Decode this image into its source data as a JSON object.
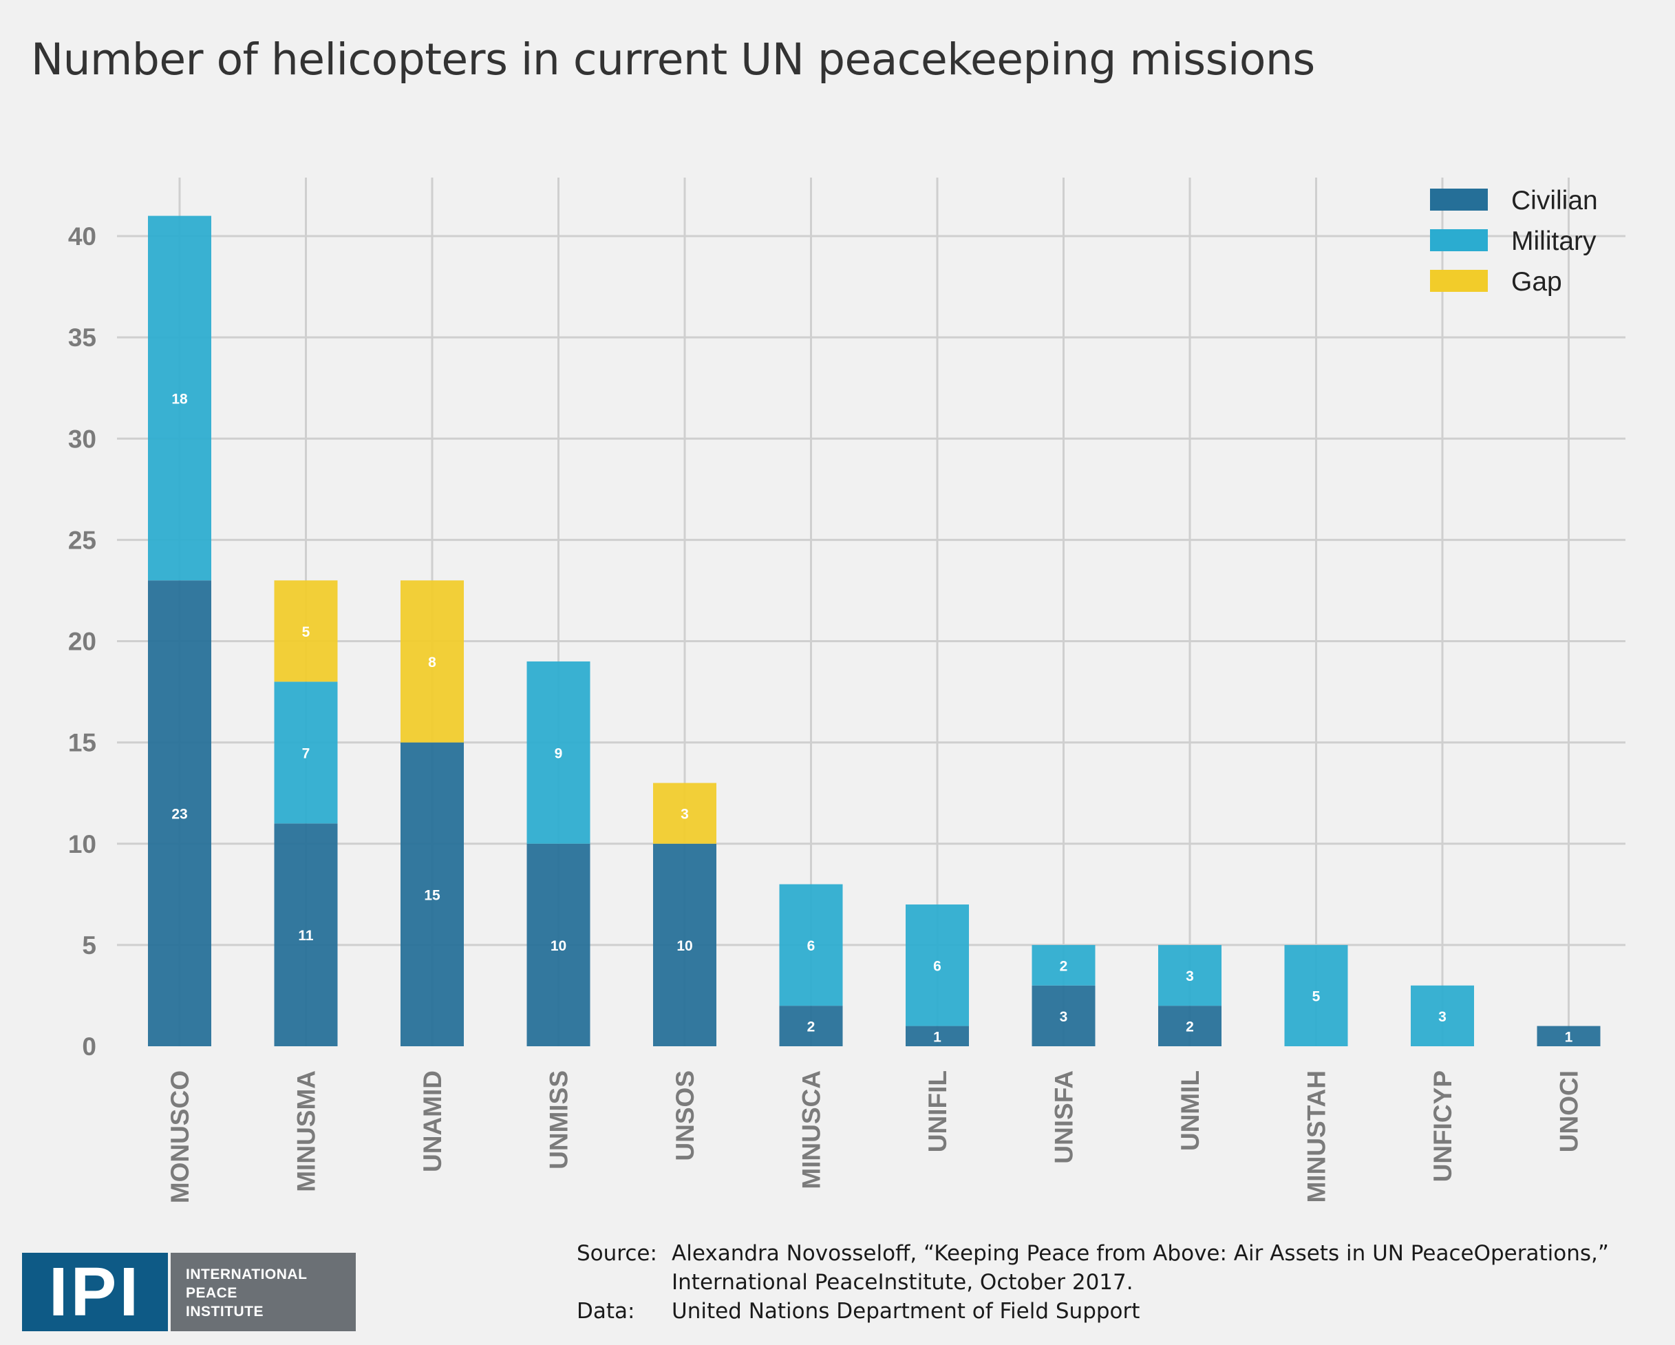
{
  "title": "Number of helicopters in current UN peacekeeping missions",
  "chart_data": {
    "type": "bar",
    "stacked": true,
    "title": "Number of helicopters in current UN peacekeeping missions",
    "categories": [
      "MONUSCO",
      "MINUSMA",
      "UNAMID",
      "UNMISS",
      "UNSOS",
      "MINUSCA",
      "UNIFIL",
      "UNISFA",
      "UNMIL",
      "MINUSTAH",
      "UNFICYP",
      "UNOCI"
    ],
    "series": [
      {
        "name": "Civilian",
        "color": "#256f98",
        "values": [
          23,
          11,
          15,
          10,
          10,
          2,
          1,
          3,
          2,
          0,
          0,
          1
        ]
      },
      {
        "name": "Military",
        "color": "#2bacd0",
        "values": [
          18,
          7,
          0,
          9,
          0,
          6,
          6,
          2,
          3,
          5,
          3,
          0
        ]
      },
      {
        "name": "Gap",
        "color": "#f2cc2a",
        "values": [
          0,
          5,
          8,
          0,
          3,
          0,
          0,
          0,
          0,
          0,
          0,
          0
        ]
      }
    ],
    "yticks": [
      "0",
      "5",
      "10",
      "15",
      "20",
      "25",
      "30",
      "35",
      "40"
    ],
    "ylim": [
      0,
      43
    ],
    "grid": true,
    "legend_position": "top-right",
    "xlabel": "",
    "ylabel": ""
  },
  "logo": {
    "mark": "IPI",
    "lines": [
      "INTERNATIONAL",
      "PEACE",
      "INSTITUTE"
    ]
  },
  "source": {
    "source_key": "Source:",
    "source_line1": "Alexandra Novosseloff, “Keeping Peace from Above: Air Assets in UN PeaceOperations,”",
    "source_line2": "International PeaceInstitute, October 2017.",
    "data_key": "Data:",
    "data_value": "United Nations Department of Field Support"
  }
}
